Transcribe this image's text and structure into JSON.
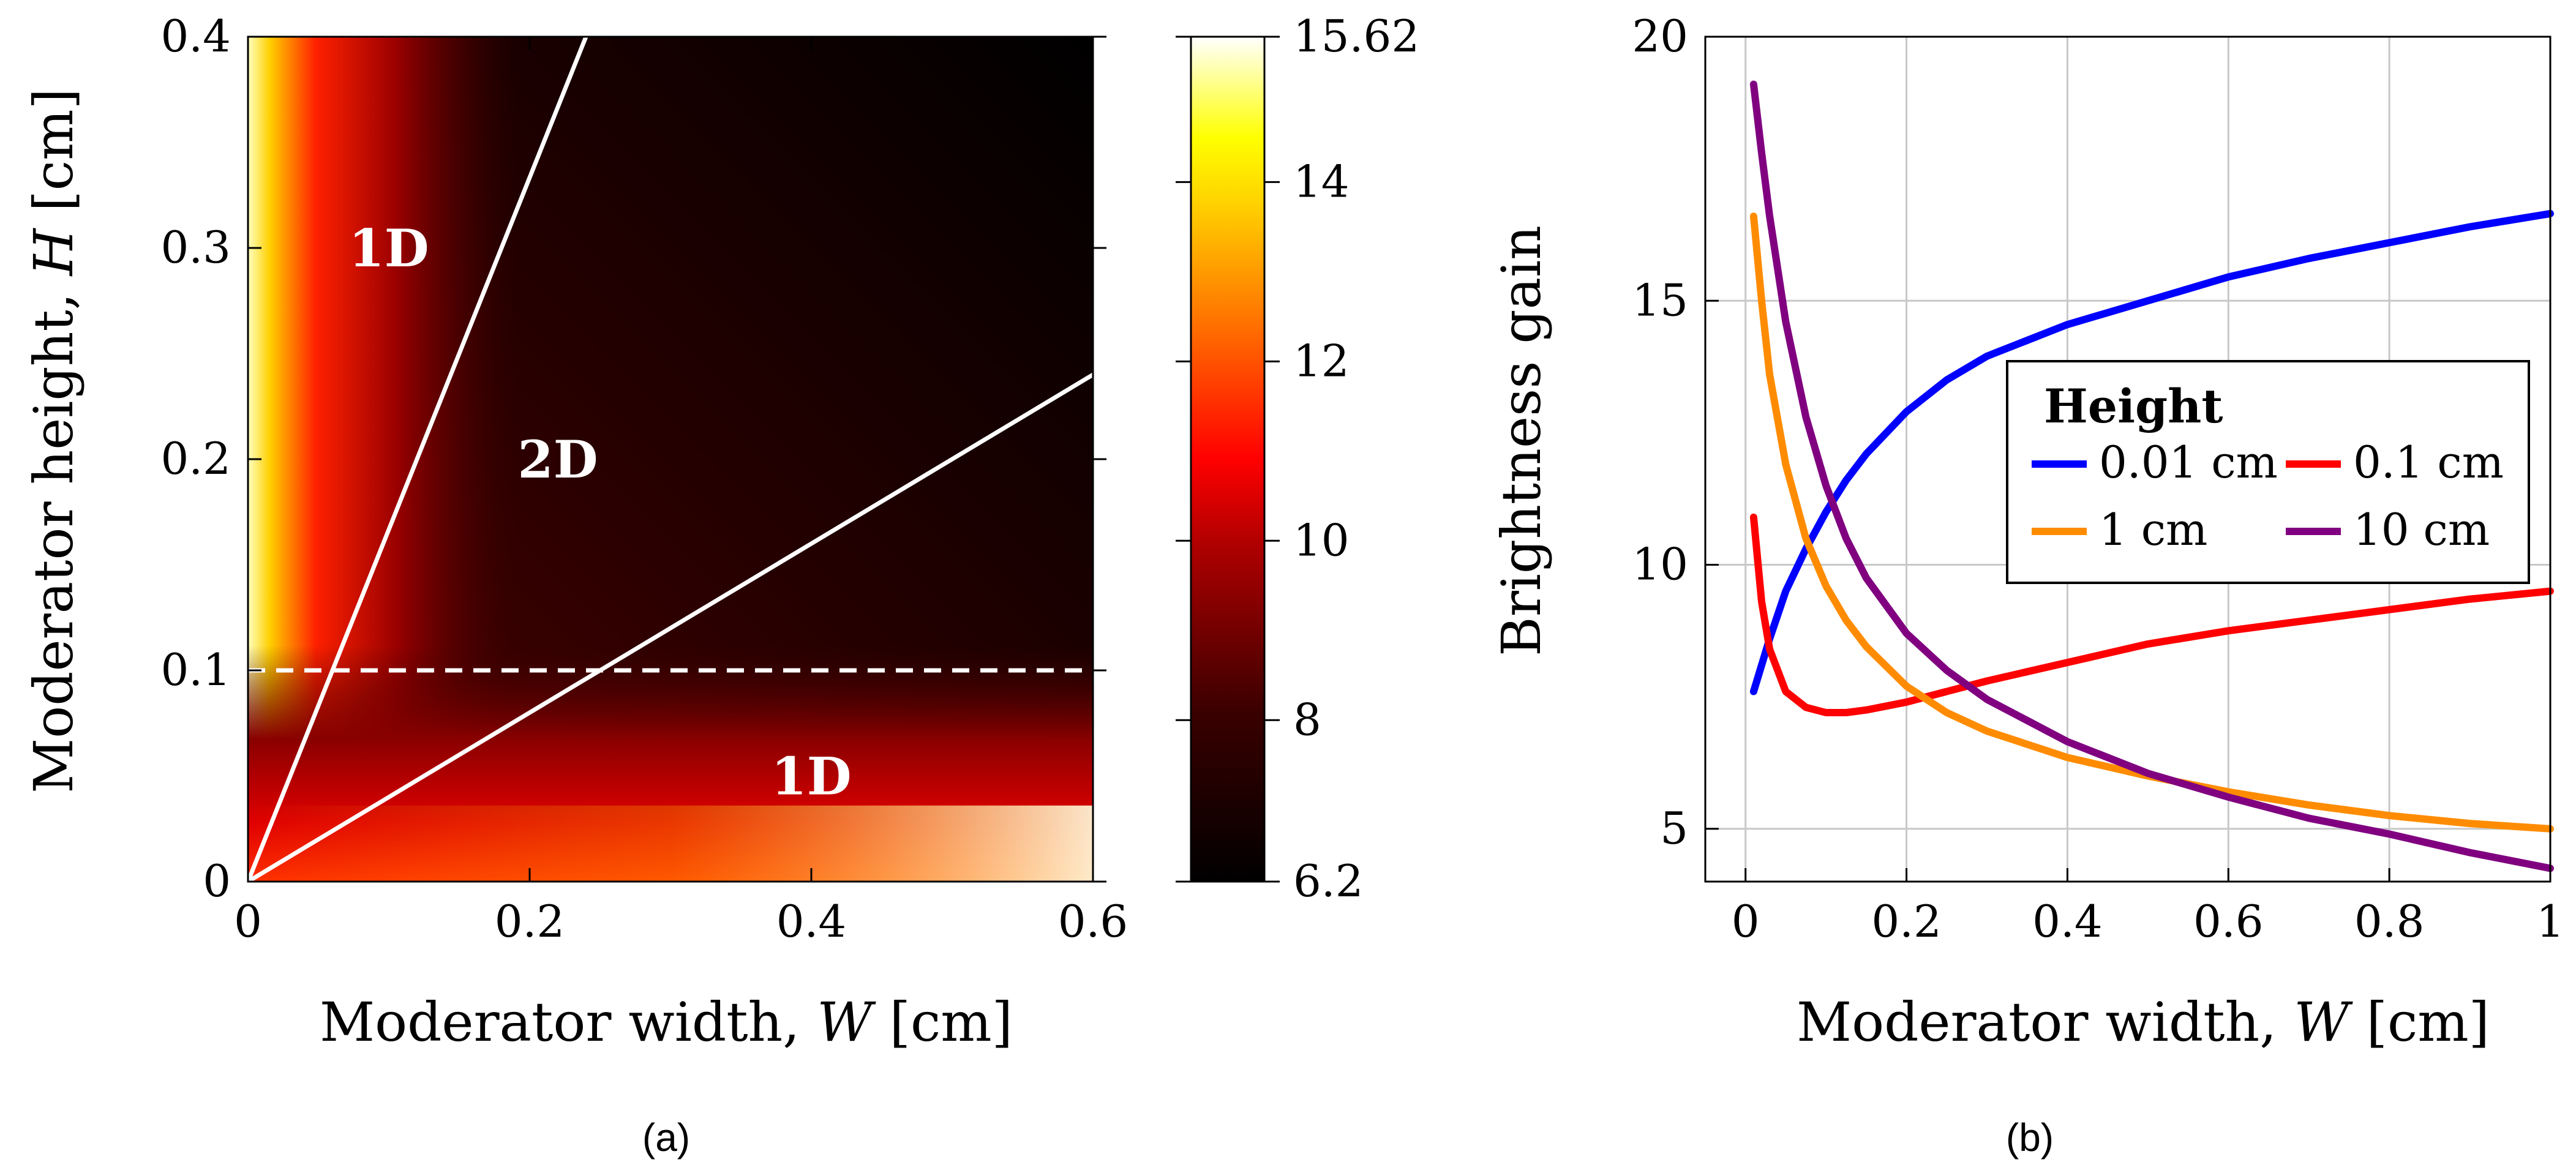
{
  "chart_data": [
    {
      "type": "heatmap",
      "panel": "(a)",
      "xlabel": "Moderator width, W [cm]",
      "ylabel": "Moderator height, H [cm]",
      "xlim": [
        0,
        0.6
      ],
      "ylim": [
        0,
        0.4
      ],
      "xticks": [
        "0",
        "0.2",
        "0.4",
        "0.6"
      ],
      "yticks": [
        "0",
        "0.1",
        "0.2",
        "0.3",
        "0.4"
      ],
      "colorbar": {
        "min": 6.2,
        "max": 15.62,
        "ticks": [
          "6.2",
          "8",
          "10",
          "12",
          "14",
          "15.62"
        ],
        "colormap": "hot"
      },
      "annotations": [
        {
          "text": "1D",
          "x": 0.1,
          "y": 0.3
        },
        {
          "text": "2D",
          "x": 0.22,
          "y": 0.2
        },
        {
          "text": "1D",
          "x": 0.4,
          "y": 0.05
        }
      ],
      "lines": [
        {
          "name": "steep boundary",
          "style": "solid",
          "x": [
            0,
            0.24
          ],
          "y": [
            0,
            0.4
          ]
        },
        {
          "name": "shallow boundary",
          "style": "solid",
          "x": [
            0,
            0.6
          ],
          "y": [
            0,
            0.24
          ]
        },
        {
          "name": "H = 0.1 cm",
          "style": "dashed",
          "x": [
            0,
            0.6
          ],
          "y": [
            0.1,
            0.1
          ]
        }
      ]
    },
    {
      "type": "line",
      "panel": "(b)",
      "xlabel": "Moderator width, W [cm]",
      "ylabel": "Brightness gain",
      "xlim": [
        -0.05,
        1
      ],
      "ylim": [
        4,
        20
      ],
      "xticks": [
        "0",
        "0.2",
        "0.4",
        "0.6",
        "0.8",
        "1"
      ],
      "yticks": [
        "5",
        "10",
        "15",
        "20"
      ],
      "grid": true,
      "legend": {
        "title": "Height",
        "placement": "center-right"
      },
      "x": [
        0.01,
        0.02,
        0.03,
        0.05,
        0.075,
        0.1,
        0.125,
        0.15,
        0.2,
        0.25,
        0.3,
        0.4,
        0.5,
        0.6,
        0.7,
        0.8,
        0.9,
        1.0
      ],
      "series": [
        {
          "name": "0.01 cm",
          "color": "#0000ff",
          "values": [
            7.6,
            8.1,
            8.6,
            9.5,
            10.3,
            11.0,
            11.6,
            12.1,
            12.9,
            13.5,
            13.95,
            14.55,
            15.0,
            15.45,
            15.8,
            16.1,
            16.4,
            16.65
          ]
        },
        {
          "name": "0.1 cm",
          "color": "#ff0000",
          "values": [
            10.9,
            9.3,
            8.4,
            7.6,
            7.3,
            7.2,
            7.2,
            7.25,
            7.4,
            7.6,
            7.8,
            8.15,
            8.5,
            8.75,
            8.95,
            9.15,
            9.35,
            9.5
          ]
        },
        {
          "name": "1 cm",
          "color": "#ff8c00",
          "values": [
            16.6,
            15.0,
            13.6,
            11.9,
            10.5,
            9.6,
            8.95,
            8.45,
            7.7,
            7.2,
            6.85,
            6.35,
            6.0,
            5.7,
            5.45,
            5.25,
            5.1,
            5.0
          ]
        },
        {
          "name": "10 cm",
          "color": "#800080",
          "values": [
            19.1,
            17.8,
            16.6,
            14.6,
            12.8,
            11.5,
            10.5,
            9.75,
            8.7,
            8.0,
            7.45,
            6.65,
            6.05,
            5.6,
            5.2,
            4.9,
            4.55,
            4.25
          ]
        }
      ]
    }
  ]
}
